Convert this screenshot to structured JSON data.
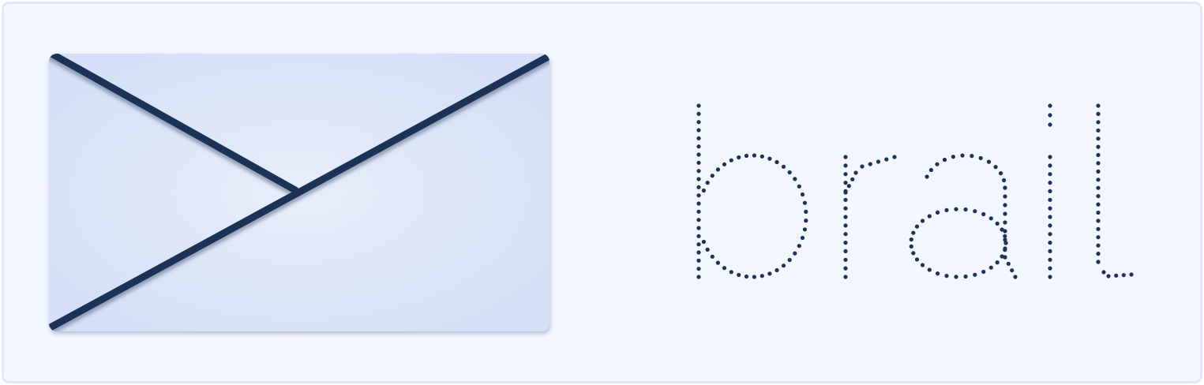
{
  "logo": {
    "wordmark": "brail",
    "icon": "envelope-icon",
    "colors": {
      "background": "#f2f6fe",
      "border": "#e1e9f9",
      "envelope_light": "#e8eefa",
      "envelope_dark": "#d3e0f7",
      "ink": "#1e3157"
    }
  }
}
